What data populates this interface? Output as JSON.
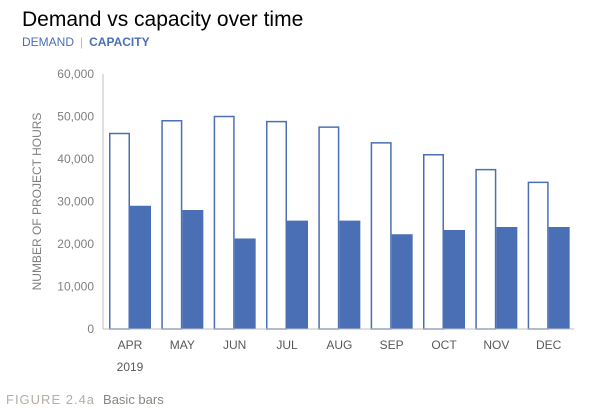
{
  "chart_data": {
    "type": "bar",
    "title": "Demand vs capacity over time",
    "ylabel": "NUMBER OF PROJECT HOURS",
    "ylim": [
      0,
      60000
    ],
    "yticks": [
      "0",
      "10,000",
      "20,000",
      "30,000",
      "40,000",
      "50,000",
      "60,000"
    ],
    "categories": [
      "APR",
      "MAY",
      "JUN",
      "JUL",
      "AUG",
      "SEP",
      "OCT",
      "NOV",
      "DEC"
    ],
    "year_label": "2019",
    "series": [
      {
        "name": "DEMAND",
        "style": "outline",
        "values": [
          46000,
          49000,
          50000,
          48800,
          47500,
          43800,
          41000,
          37500,
          34500
        ]
      },
      {
        "name": "CAPACITY",
        "style": "filled",
        "values": [
          29000,
          28000,
          21300,
          25500,
          25500,
          22300,
          23300,
          24000,
          24000
        ]
      }
    ],
    "legend_position": "top-left",
    "grid": false
  },
  "legend": {
    "separator": "|"
  },
  "caption": {
    "figure": "FIGURE 2.4a",
    "text": "Basic bars"
  },
  "colors": {
    "bar": "#4a6fb5",
    "axis": "#bfbfbf",
    "tick": "#7f7f7f"
  }
}
